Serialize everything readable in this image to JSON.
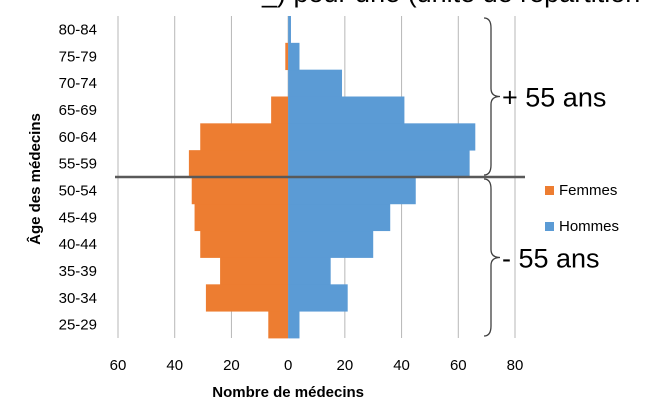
{
  "top_partial_text": "_) pour une (unité de répartition de médecins) ...",
  "chart_data": {
    "type": "bar",
    "orientation": "horizontal",
    "layout": "population-pyramid",
    "categories": [
      "25-29",
      "30-34",
      "35-39",
      "40-44",
      "45-49",
      "50-54",
      "55-59",
      "60-64",
      "65-69",
      "70-74",
      "75-79",
      "80-84"
    ],
    "series": [
      {
        "name": "Femmes",
        "color": "#ED7D31",
        "side": "left",
        "values": [
          7,
          29,
          24,
          31,
          33,
          34,
          35,
          31,
          6,
          0,
          1,
          0
        ]
      },
      {
        "name": "Hommes",
        "color": "#5B9BD5",
        "side": "right",
        "values": [
          4,
          21,
          15,
          30,
          36,
          45,
          64,
          66,
          41,
          19,
          4,
          1
        ]
      }
    ],
    "xlabel": "Nombre de médecins",
    "ylabel": "Âge des médecins",
    "x_ticks": [
      "60",
      "40",
      "20",
      "0",
      "20",
      "40",
      "60",
      "80"
    ],
    "x_tick_values": [
      -60,
      -40,
      -20,
      0,
      20,
      40,
      60,
      80
    ],
    "xlim": [
      -60,
      80
    ],
    "grid": "vertical",
    "legend": "right",
    "divider_between": [
      "50-54",
      "55-59"
    ],
    "group_labels": [
      {
        "text": "+ 55 ans",
        "categories": [
          "55-59",
          "80-84"
        ]
      },
      {
        "text": "- 55 ans",
        "categories": [
          "25-29",
          "50-54"
        ]
      }
    ]
  }
}
